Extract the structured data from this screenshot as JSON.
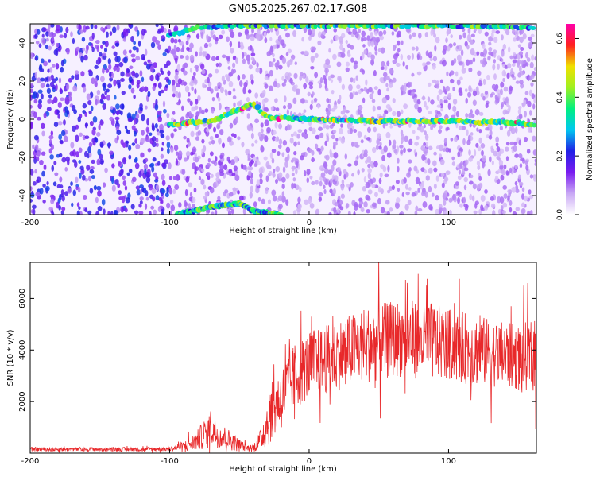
{
  "title": "GN05.2025.267.02.17.G08",
  "chart_data": [
    {
      "type": "heatmap",
      "xlabel": "Height of straight line (km)",
      "ylabel": "Frequency (Hz)",
      "xlim": [
        -200,
        163
      ],
      "ylim": [
        -50,
        50
      ],
      "xticks": [
        -200,
        -100,
        0,
        100
      ],
      "yticks": [
        -40,
        -20,
        0,
        20,
        40
      ],
      "colorbar": {
        "label": "Normalized spectral amplitude",
        "range": [
          0.0,
          0.65
        ],
        "ticks": [
          "0.0",
          "0.2",
          "0.4",
          "0.6"
        ],
        "colors": [
          "#ffffff",
          "#c9a8f5",
          "#7a1bf0",
          "#2020e6",
          "#00c8f0",
          "#00f080",
          "#a0f020",
          "#f0e000",
          "#ff2020",
          "#ff00aa"
        ]
      },
      "features": [
        {
          "name": "carrier_line",
          "x": [
            -100,
            -90,
            -70,
            -55,
            -40,
            -30,
            0,
            50,
            100,
            150,
            163
          ],
          "y": [
            -3,
            -2,
            -1,
            4,
            8,
            1,
            0,
            -1,
            -1,
            -2,
            -3
          ]
        },
        {
          "name": "upper_band",
          "x": [
            -100,
            -80,
            -50,
            0,
            50,
            100,
            163
          ],
          "y": [
            44,
            48,
            49,
            49,
            49,
            49,
            48
          ]
        },
        {
          "name": "lower_branch",
          "x": [
            -95,
            -70,
            -50,
            -40,
            -20
          ],
          "y": [
            -50,
            -46,
            -44,
            -48,
            -50
          ]
        }
      ]
    },
    {
      "type": "line",
      "xlabel": "Height of straight line (km)",
      "ylabel": "SNR (10 * v/v)",
      "xlim": [
        -200,
        163
      ],
      "ylim": [
        0,
        7400
      ],
      "xticks": [
        -200,
        -100,
        0,
        100
      ],
      "yticks": [
        2000,
        4000,
        6000
      ],
      "grid": false,
      "series": [
        {
          "color": "#e8282a",
          "envelope": {
            "x": [
              -200,
              -120,
              -100,
              -90,
              -80,
              -75,
              -70,
              -65,
              -60,
              -55,
              -50,
              -45,
              -40,
              -35,
              -30,
              -25,
              -20,
              -15,
              -10,
              -5,
              0,
              10,
              20,
              30,
              40,
              50,
              60,
              70,
              80,
              90,
              100,
              110,
              120,
              130,
              140,
              150,
              163
            ],
            "mean": [
              150,
              150,
              170,
              250,
              500,
              750,
              1000,
              700,
              600,
              450,
              300,
              200,
              200,
              500,
              1200,
              1800,
              2100,
              2600,
              3000,
              3200,
              3400,
              3600,
              3800,
              4000,
              4200,
              4300,
              4400,
              4500,
              4400,
              4300,
              4200,
              4100,
              4000,
              3900,
              3800,
              3700,
              3800
            ],
            "amplitude": [
              80,
              80,
              90,
              200,
              400,
              600,
              800,
              500,
              450,
              350,
              250,
              120,
              150,
              400,
              1000,
              1200,
              1200,
              1300,
              1300,
              1300,
              1300,
              1300,
              1400,
              1400,
              1500,
              1500,
              1500,
              1500,
              1500,
              1500,
              1400,
              1400,
              1400,
              1300,
              1300,
              1300,
              1400
            ]
          }
        }
      ]
    }
  ]
}
